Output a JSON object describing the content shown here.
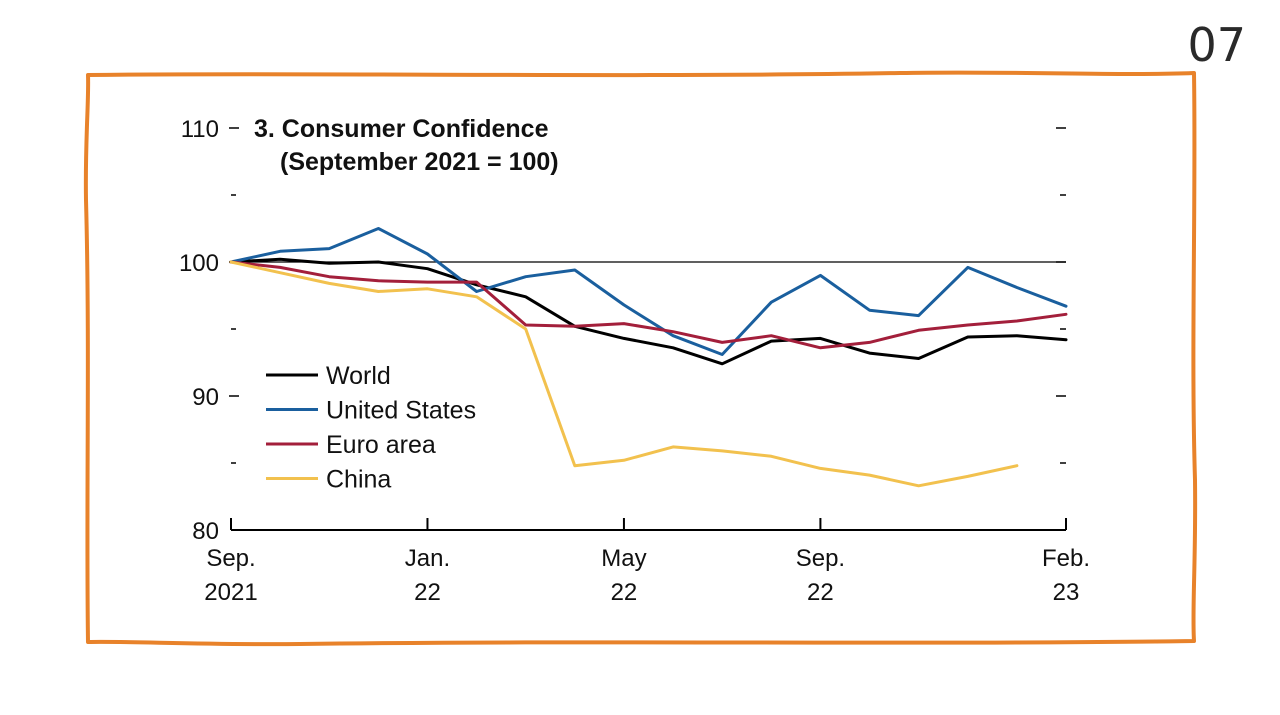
{
  "slide_number": "07",
  "frame_color": "#e8822a",
  "chart_data": {
    "type": "line",
    "title": "3. Consumer Confidence",
    "subtitle": "(September 2021 = 100)",
    "xlabel": "",
    "ylabel": "",
    "ylim": [
      80,
      110
    ],
    "yticks_labeled": [
      {
        "value": 110,
        "label": "110"
      },
      {
        "value": 100,
        "label": "100"
      },
      {
        "value": 90,
        "label": "90"
      },
      {
        "value": 80,
        "label": "80"
      }
    ],
    "yticks_minor": [
      105,
      95,
      85
    ],
    "reference_line": 100,
    "xlim": [
      0,
      17
    ],
    "xticks": [
      {
        "value": 0,
        "line1": "Sep.",
        "line2": "2021"
      },
      {
        "value": 4,
        "line1": "Jan.",
        "line2": "22"
      },
      {
        "value": 8,
        "line1": "May",
        "line2": "22"
      },
      {
        "value": 12,
        "line1": "Sep.",
        "line2": "22"
      },
      {
        "value": 17,
        "line1": "Feb.",
        "line2": "23"
      }
    ],
    "legend_position": "bottom-left",
    "series": [
      {
        "name": "World",
        "color": "#000000",
        "values": [
          100,
          100.2,
          99.9,
          100,
          99.5,
          98.3,
          97.4,
          95.2,
          94.3,
          93.6,
          92.4,
          94.1,
          94.3,
          93.2,
          92.8,
          94.4,
          94.5,
          94.2
        ]
      },
      {
        "name": "United States",
        "color": "#1a5f9e",
        "values": [
          100,
          100.8,
          101,
          102.5,
          100.6,
          97.8,
          98.9,
          99.4,
          96.8,
          94.5,
          93.1,
          97,
          99,
          96.4,
          96,
          99.6,
          98.1,
          96.7
        ]
      },
      {
        "name": "Euro area",
        "color": "#a31f3b",
        "values": [
          100,
          99.6,
          98.9,
          98.6,
          98.5,
          98.5,
          95.3,
          95.2,
          95.4,
          94.8,
          94,
          94.5,
          93.6,
          94,
          94.9,
          95.3,
          95.6,
          96.1
        ]
      },
      {
        "name": "China",
        "color": "#f2c14e",
        "values": [
          100,
          99.2,
          98.4,
          97.8,
          98,
          97.4,
          95,
          84.8,
          85.2,
          86.2,
          85.9,
          85.5,
          84.6,
          84.1,
          83.3,
          84,
          84.8,
          null
        ]
      }
    ]
  }
}
